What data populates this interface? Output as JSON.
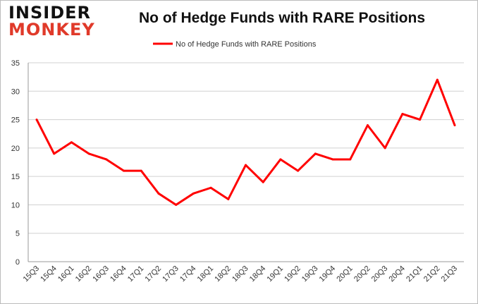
{
  "logo": {
    "line1": "INSIDER",
    "line2": "MONKEY"
  },
  "chart_data": {
    "type": "line",
    "title": "No of Hedge Funds with RARE Positions",
    "xlabel": "",
    "ylabel": "",
    "categories": [
      "15Q3",
      "15Q4",
      "16Q1",
      "16Q2",
      "16Q3",
      "16Q4",
      "17Q1",
      "17Q2",
      "17Q3",
      "17Q4",
      "18Q1",
      "18Q2",
      "18Q3",
      "18Q4",
      "19Q1",
      "19Q2",
      "19Q3",
      "19Q4",
      "20Q1",
      "20Q2",
      "20Q3",
      "20Q4",
      "21Q1",
      "21Q2",
      "21Q3"
    ],
    "series": [
      {
        "name": "No of Hedge Funds with RARE Positions",
        "color": "#ff0000",
        "values": [
          25,
          19,
          21,
          19,
          18,
          16,
          16,
          12,
          10,
          12,
          13,
          11,
          17,
          14,
          18,
          16,
          19,
          18,
          18,
          24,
          20,
          26,
          25,
          32,
          24
        ]
      }
    ],
    "ylim": [
      0,
      35
    ],
    "yticks": [
      0,
      5,
      10,
      15,
      20,
      25,
      30,
      35
    ],
    "grid": true,
    "legend": "top-center"
  }
}
